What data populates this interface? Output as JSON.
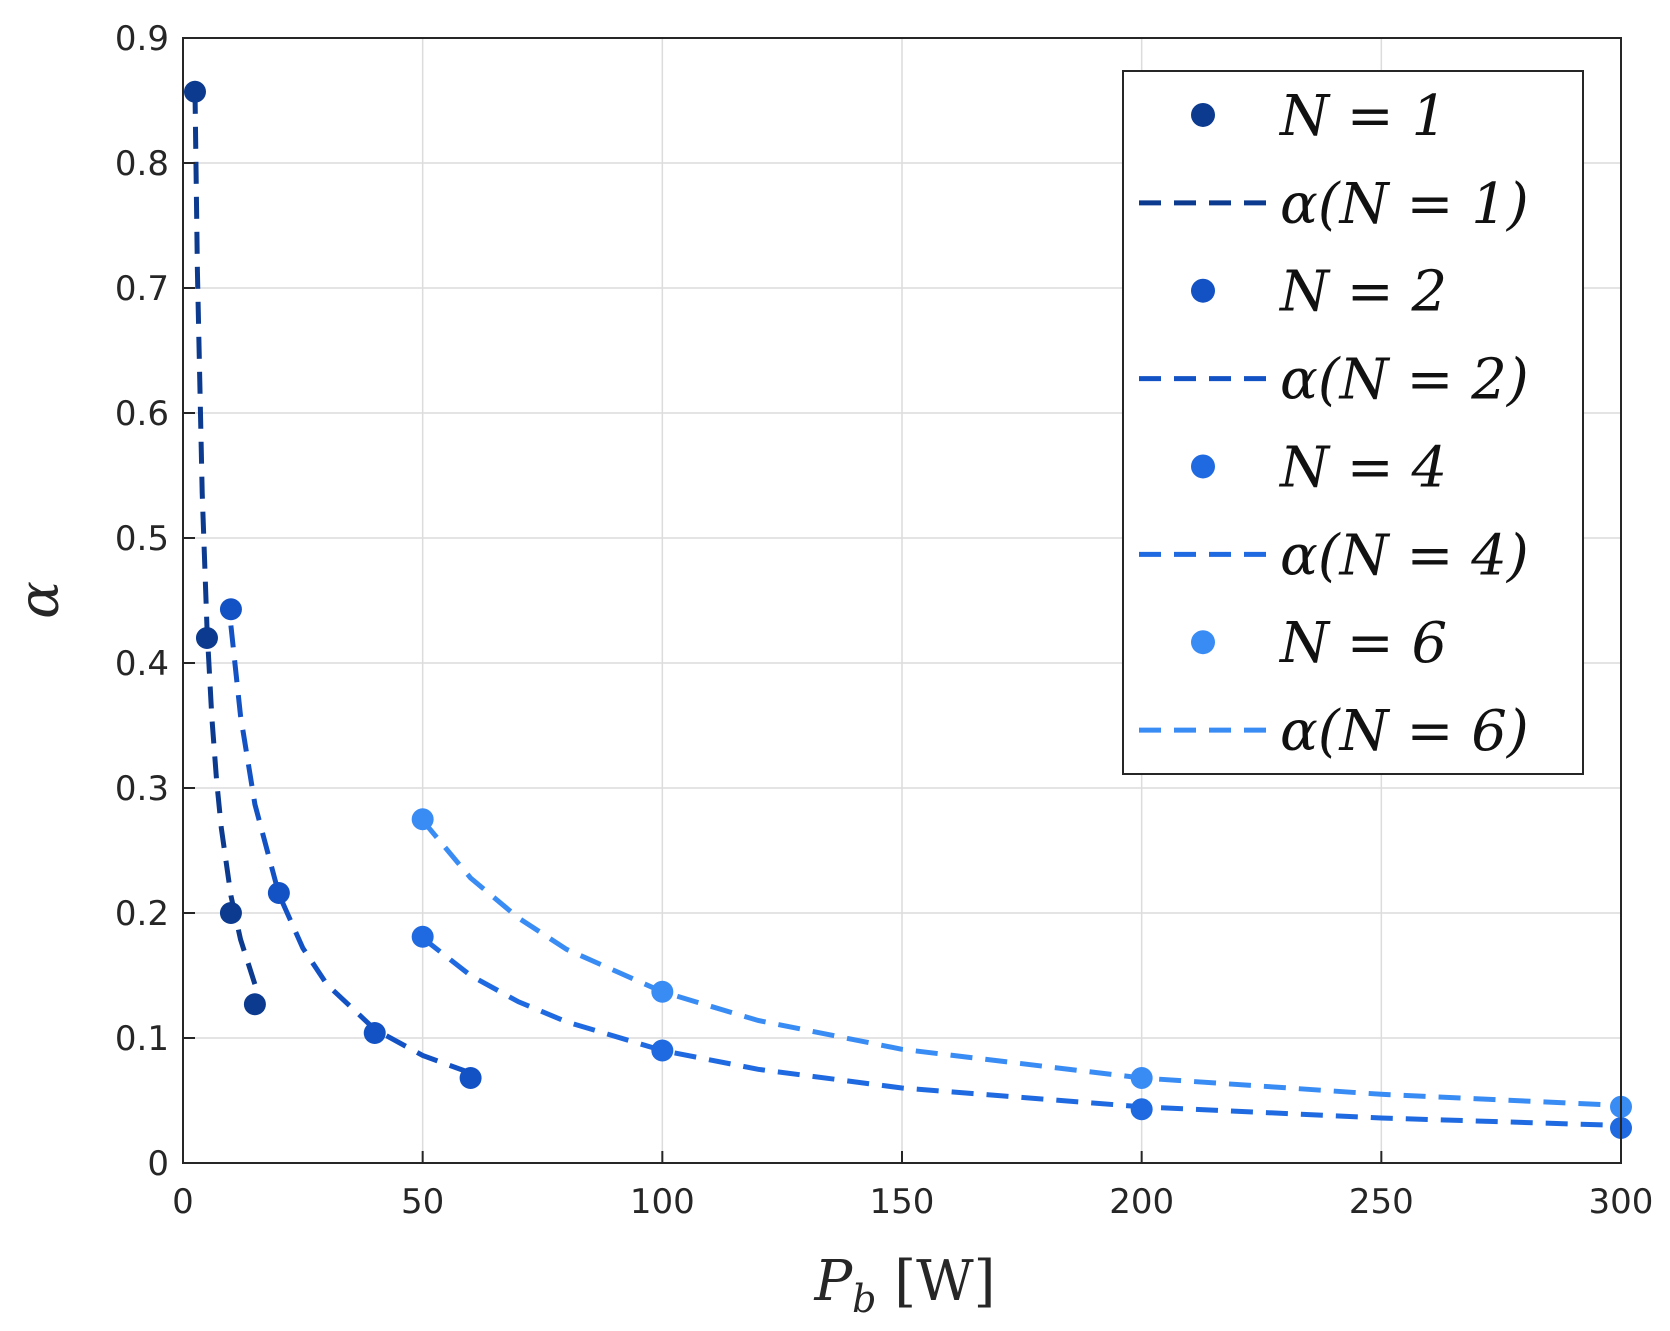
{
  "chart_data": {
    "type": "scatter",
    "xlabel": "P_b [W]",
    "ylabel": "α",
    "xlim": [
      0,
      300
    ],
    "ylim": [
      0,
      0.9
    ],
    "xticks": [
      "0",
      "50",
      "100",
      "150",
      "200",
      "250",
      "300"
    ],
    "yticks": [
      "0",
      "0.1",
      "0.2",
      "0.3",
      "0.4",
      "0.5",
      "0.6",
      "0.7",
      "0.8",
      "0.9"
    ],
    "grid": true,
    "legend_position": "top-right",
    "series": [
      {
        "name": "N = 1",
        "fit_name": "α(N = 1)",
        "color": "#0b3a8f",
        "points": [
          [
            2.5,
            0.857
          ],
          [
            5,
            0.42
          ],
          [
            10,
            0.2
          ],
          [
            15,
            0.127
          ]
        ],
        "fit": [
          [
            2.5,
            0.857
          ],
          [
            3,
            0.714
          ],
          [
            4,
            0.536
          ],
          [
            5,
            0.428
          ],
          [
            6,
            0.357
          ],
          [
            7,
            0.306
          ],
          [
            8,
            0.268
          ],
          [
            10,
            0.214
          ],
          [
            12,
            0.179
          ],
          [
            15,
            0.143
          ]
        ]
      },
      {
        "name": "N = 2",
        "fit_name": "α(N = 2)",
        "color": "#1352c4",
        "points": [
          [
            10,
            0.443
          ],
          [
            20,
            0.216
          ],
          [
            40,
            0.104
          ],
          [
            60,
            0.068
          ]
        ],
        "fit": [
          [
            10,
            0.43
          ],
          [
            12,
            0.358
          ],
          [
            15,
            0.287
          ],
          [
            20,
            0.215
          ],
          [
            25,
            0.172
          ],
          [
            30,
            0.143
          ],
          [
            40,
            0.107
          ],
          [
            50,
            0.086
          ],
          [
            60,
            0.072
          ]
        ]
      },
      {
        "name": "N = 4",
        "fit_name": "α(N = 4)",
        "color": "#1f6ae0",
        "points": [
          [
            50,
            0.181
          ],
          [
            100,
            0.09
          ],
          [
            200,
            0.043
          ],
          [
            300,
            0.028
          ]
        ],
        "fit": [
          [
            50,
            0.18
          ],
          [
            60,
            0.15
          ],
          [
            70,
            0.129
          ],
          [
            80,
            0.113
          ],
          [
            100,
            0.09
          ],
          [
            120,
            0.075
          ],
          [
            150,
            0.06
          ],
          [
            200,
            0.045
          ],
          [
            250,
            0.036
          ],
          [
            300,
            0.03
          ]
        ]
      },
      {
        "name": "N = 6",
        "fit_name": "α(N = 6)",
        "color": "#3a8cf5",
        "points": [
          [
            50,
            0.275
          ],
          [
            100,
            0.137
          ],
          [
            200,
            0.068
          ],
          [
            300,
            0.045
          ]
        ],
        "fit": [
          [
            50,
            0.274
          ],
          [
            60,
            0.228
          ],
          [
            70,
            0.196
          ],
          [
            80,
            0.171
          ],
          [
            100,
            0.137
          ],
          [
            120,
            0.114
          ],
          [
            150,
            0.091
          ],
          [
            200,
            0.068
          ],
          [
            250,
            0.055
          ],
          [
            300,
            0.046
          ]
        ]
      }
    ]
  }
}
